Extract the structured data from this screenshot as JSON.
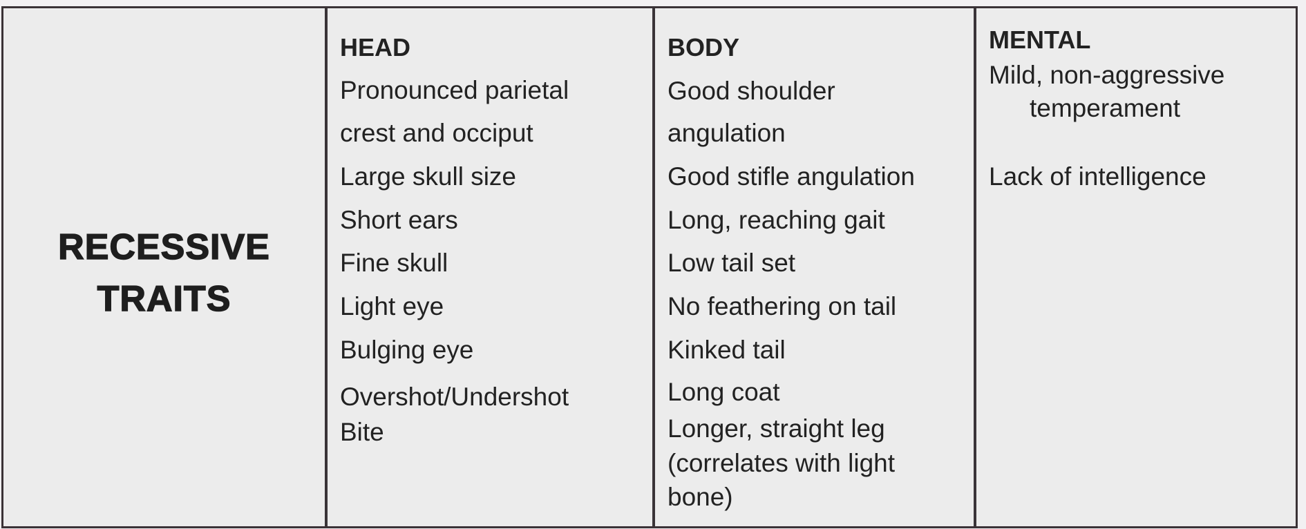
{
  "label": [
    "RECESSIVE",
    "TRAITS"
  ],
  "columns": [
    {
      "heading": "HEAD",
      "lines": [
        "Pronounced parietal",
        "crest and occiput",
        "Large skull size",
        "Short ears",
        "Fine skull",
        "Light eye",
        "Bulging eye",
        "Overshot/Undershot",
        "Bite"
      ]
    },
    {
      "heading": "BODY",
      "lines": [
        "Good shoulder",
        "angulation",
        "Good stifle angulation",
        "Long, reaching gait",
        "Low tail set",
        "No feathering on tail",
        "Kinked tail",
        "Long coat",
        "Longer, straight leg",
        "(correlates with light",
        "bone)"
      ]
    },
    {
      "heading": "MENTAL",
      "lines": [
        "Mild, non-aggressive",
        "temperament",
        "Lack of intelligence"
      ]
    }
  ]
}
